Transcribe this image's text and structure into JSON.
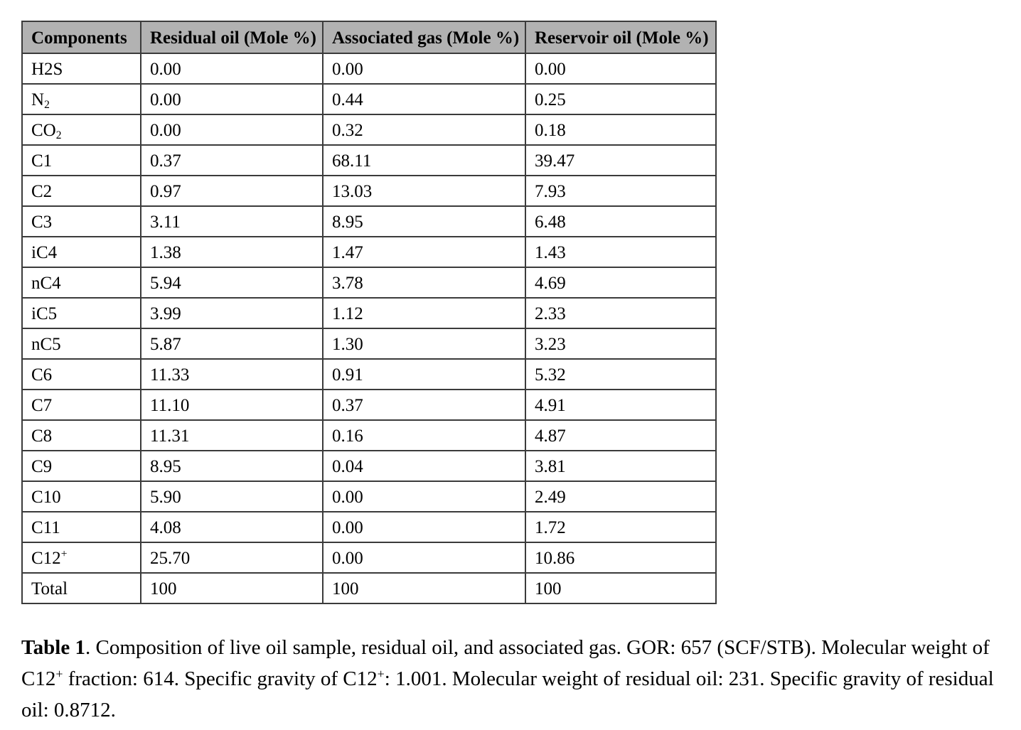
{
  "page": {
    "background": "#ffffff"
  },
  "table": {
    "style": {
      "header_bg": "#b2b2b2",
      "border_color": "#3b3b3b",
      "text_color": "#000000"
    },
    "headers": [
      "Components",
      "Residual oil (Mole %)",
      "Associated gas (Mole %)",
      "Reservoir oil (Mole %)"
    ],
    "rows": [
      {
        "component": {
          "base": "H2S"
        },
        "values": [
          "0.00",
          "0.00",
          "0.00"
        ]
      },
      {
        "component": {
          "base": "N",
          "sub": "2"
        },
        "values": [
          "0.00",
          "0.44",
          "0.25"
        ]
      },
      {
        "component": {
          "base": "CO",
          "sub": "2"
        },
        "values": [
          "0.00",
          "0.32",
          "0.18"
        ]
      },
      {
        "component": {
          "base": "C1"
        },
        "values": [
          "0.37",
          "68.11",
          "39.47"
        ]
      },
      {
        "component": {
          "base": "C2"
        },
        "values": [
          "0.97",
          "13.03",
          "7.93"
        ]
      },
      {
        "component": {
          "base": "C3"
        },
        "values": [
          "3.11",
          "8.95",
          "6.48"
        ]
      },
      {
        "component": {
          "base": "iC4"
        },
        "values": [
          "1.38",
          "1.47",
          "1.43"
        ]
      },
      {
        "component": {
          "base": "nC4"
        },
        "values": [
          "5.94",
          "3.78",
          "4.69"
        ]
      },
      {
        "component": {
          "base": "iC5"
        },
        "values": [
          "3.99",
          "1.12",
          "2.33"
        ]
      },
      {
        "component": {
          "base": "nC5"
        },
        "values": [
          "5.87",
          "1.30",
          "3.23"
        ]
      },
      {
        "component": {
          "base": "C6"
        },
        "values": [
          "11.33",
          "0.91",
          "5.32"
        ]
      },
      {
        "component": {
          "base": "C7"
        },
        "values": [
          "11.10",
          "0.37",
          "4.91"
        ]
      },
      {
        "component": {
          "base": "C8"
        },
        "values": [
          "11.31",
          "0.16",
          "4.87"
        ]
      },
      {
        "component": {
          "base": "C9"
        },
        "values": [
          "8.95",
          "0.04",
          "3.81"
        ]
      },
      {
        "component": {
          "base": "C10"
        },
        "values": [
          "5.90",
          "0.00",
          "2.49"
        ]
      },
      {
        "component": {
          "base": "C11"
        },
        "values": [
          "4.08",
          "0.00",
          "1.72"
        ]
      },
      {
        "component": {
          "base": "C12",
          "sup": "+"
        },
        "values": [
          "25.70",
          "0.00",
          "10.86"
        ]
      },
      {
        "component": {
          "base": "Total"
        },
        "values": [
          "100",
          "100",
          "100"
        ]
      }
    ]
  },
  "caption": {
    "label": "Table 1",
    "segments": [
      {
        "text": ".  Composition of live oil sample, residual oil, and associated gas. GOR: 657 (SCF/STB). Molecular weight of C12"
      },
      {
        "text": "+",
        "sup": true
      },
      {
        "text": " fraction: 614. Specific gravity of C12"
      },
      {
        "text": "+",
        "sup": true
      },
      {
        "text": ": 1.001. Molecular weight of residual oil: 231. Specific gravity of residual oil: 0.8712."
      }
    ]
  }
}
